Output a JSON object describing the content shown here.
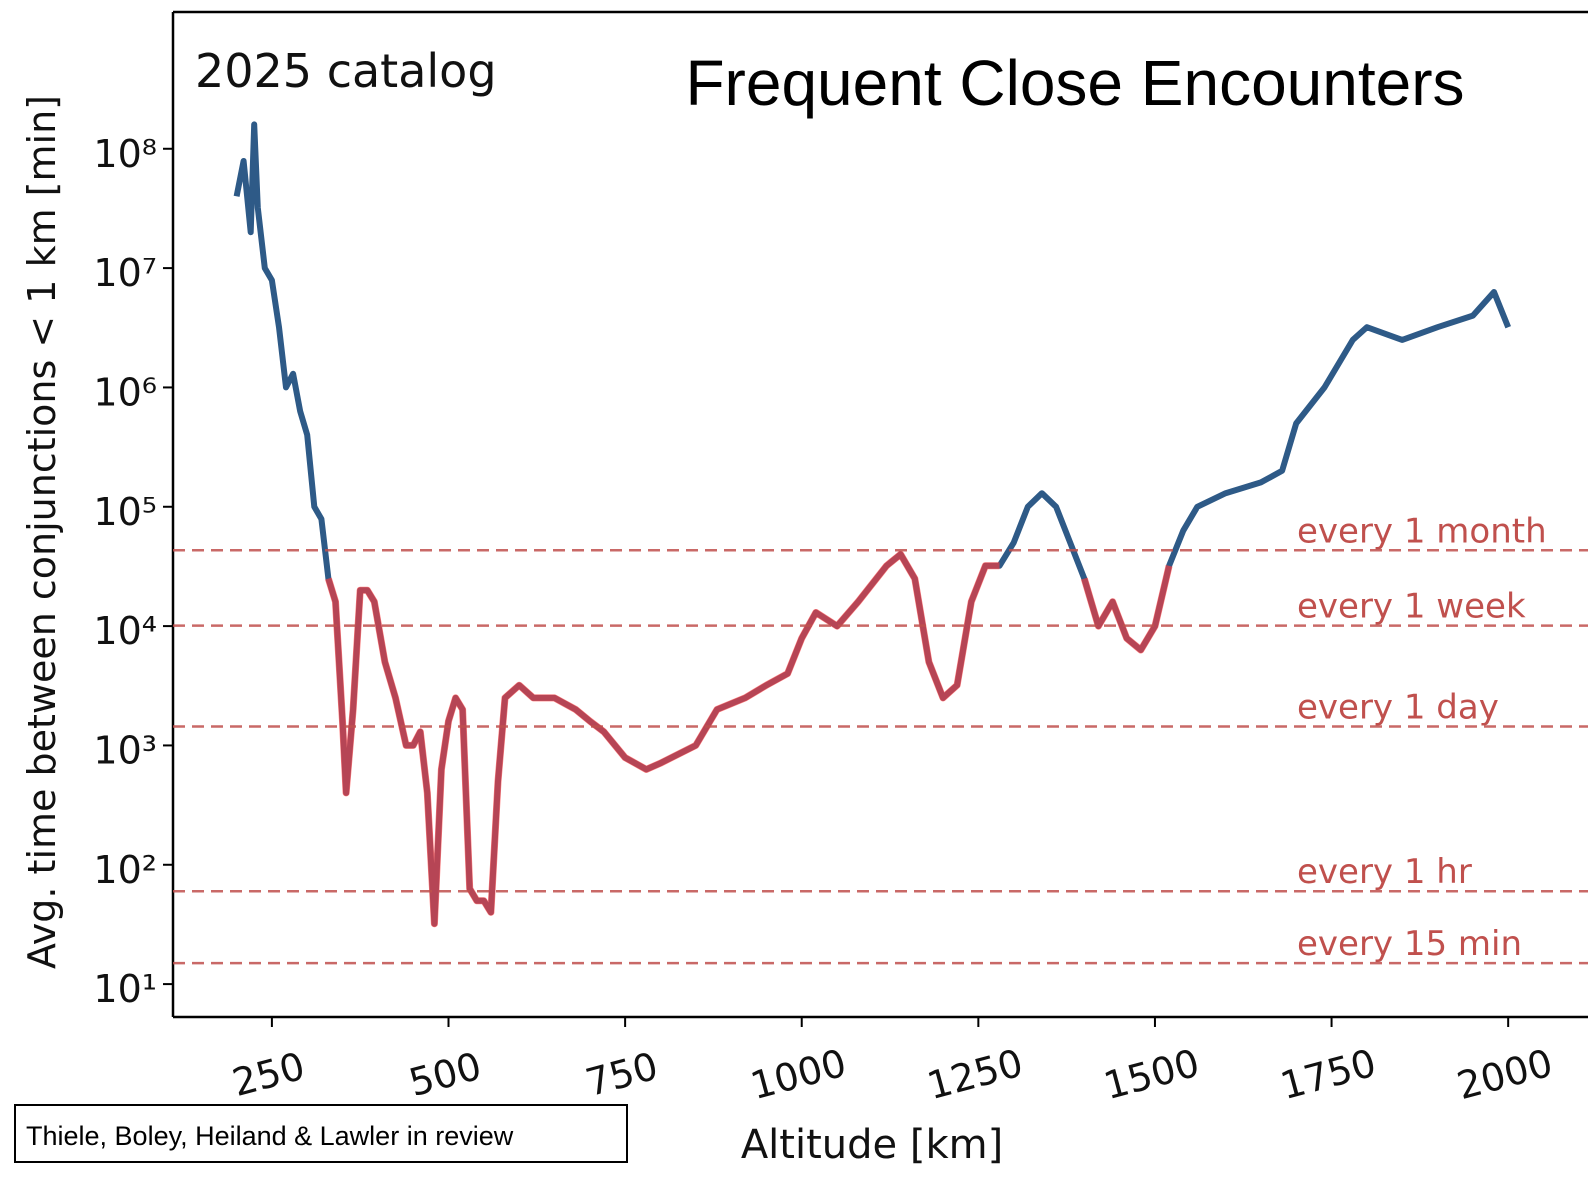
{
  "chart_data": {
    "type": "line",
    "title": "Frequent Close Encounters",
    "annotation": "2025 catalog",
    "footnote": "Thiele, Boley, Heiland & Lawler in review",
    "xlabel": "Altitude [km]",
    "ylabel": "Avg. time between conjunctions < 1 km [min]",
    "xlim": [
      110,
      2113
    ],
    "ylim": [
      5.3,
      1400000000
    ],
    "ylog": true,
    "xticks": [
      250,
      500,
      750,
      1000,
      1250,
      1500,
      1750,
      2000
    ],
    "yticks": [
      {
        "value": 10,
        "label": "10¹"
      },
      {
        "value": 100,
        "label": "10²"
      },
      {
        "value": 1000,
        "label": "10³"
      },
      {
        "value": 10000,
        "label": "10⁴"
      },
      {
        "value": 100000,
        "label": "10⁵"
      },
      {
        "value": 1000000,
        "label": "10⁶"
      },
      {
        "value": 10000000,
        "label": "10⁷"
      },
      {
        "value": 100000000,
        "label": "10⁸"
      }
    ],
    "hline_color": "#c0504d",
    "hlines": [
      {
        "value": 43200,
        "label": "every 1 month"
      },
      {
        "value": 10080,
        "label": "every 1 week"
      },
      {
        "value": 1440,
        "label": "every 1 day"
      },
      {
        "value": 60,
        "label": "every 1 hr"
      },
      {
        "value": 15,
        "label": "every 15 min"
      }
    ],
    "x": [
      200,
      210,
      220,
      225,
      230,
      240,
      250,
      260,
      270,
      280,
      290,
      300,
      310,
      320,
      330,
      340,
      350,
      355,
      365,
      375,
      385,
      395,
      410,
      425,
      440,
      450,
      460,
      470,
      480,
      490,
      500,
      510,
      520,
      530,
      540,
      550,
      560,
      570,
      580,
      600,
      620,
      650,
      680,
      700,
      720,
      750,
      780,
      800,
      850,
      880,
      920,
      950,
      980,
      1000,
      1020,
      1050,
      1080,
      1120,
      1140,
      1160,
      1180,
      1200,
      1220,
      1240,
      1260,
      1280,
      1300,
      1320,
      1340,
      1360,
      1380,
      1400,
      1420,
      1440,
      1460,
      1480,
      1500,
      1520,
      1540,
      1560,
      1600,
      1650,
      1680,
      1700,
      1740,
      1780,
      1800,
      1850,
      1900,
      1950,
      1980,
      2000
    ],
    "series": [
      {
        "color": "#2e5a87",
        "values": [
          40000000,
          79000000,
          20000000,
          160000000,
          32000000,
          10000000,
          7900000,
          3200000,
          1000000,
          1300000,
          630000,
          400000,
          100000,
          79000,
          25000,
          16000,
          1600,
          400,
          2000,
          20000,
          20000,
          16000,
          5000,
          2500,
          1000,
          1000,
          1300,
          400,
          32,
          630,
          1600,
          2500,
          2000,
          63,
          50,
          50,
          40,
          500,
          2500,
          3200,
          2500,
          2500,
          2000,
          1600,
          1300,
          790,
          630,
          710,
          1000,
          2000,
          2500,
          3200,
          4000,
          7900,
          13000,
          10000,
          16000,
          32000,
          40000,
          25000,
          5000,
          2500,
          3200,
          16000,
          32000,
          32000,
          50000,
          100000,
          130000,
          100000,
          50000,
          25000,
          10000,
          16000,
          7900,
          6300,
          10000,
          32000,
          63000,
          100000,
          130000,
          160000,
          200000,
          500000,
          1000000,
          2500000,
          3200000,
          2500000,
          3200000,
          4000000,
          6300000,
          3200000
        ]
      },
      {
        "color": "#ff3b3b",
        "values": [
          null,
          null,
          null,
          null,
          null,
          null,
          null,
          null,
          null,
          null,
          null,
          null,
          null,
          null,
          25000,
          16000,
          1600,
          400,
          2000,
          20000,
          20000,
          16000,
          5000,
          2500,
          1000,
          1000,
          1300,
          400,
          32,
          630,
          1600,
          2500,
          2000,
          63,
          50,
          50,
          40,
          500,
          2500,
          3200,
          2500,
          2500,
          2000,
          1600,
          1300,
          790,
          630,
          710,
          1000,
          2000,
          2500,
          3200,
          4000,
          7900,
          13000,
          10000,
          16000,
          32000,
          40000,
          25000,
          5000,
          2500,
          3200,
          16000,
          32000,
          32000,
          null,
          null,
          null,
          null,
          null,
          25000,
          10000,
          16000,
          7900,
          6300,
          10000,
          32000,
          null,
          null,
          null,
          null,
          null,
          null,
          null,
          null,
          null,
          null,
          null,
          null,
          null,
          null
        ]
      }
    ]
  }
}
